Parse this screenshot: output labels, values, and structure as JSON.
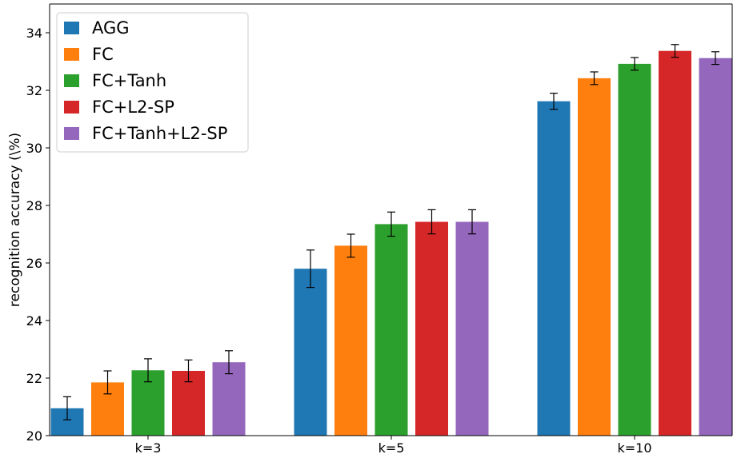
{
  "chart_data": {
    "type": "bar",
    "title": "",
    "xlabel": "",
    "ylabel": "recognition accuracy (\\%)",
    "categories": [
      "k=3",
      "k=5",
      "k=10"
    ],
    "ylim": [
      20,
      35
    ],
    "yticks": [
      20,
      22,
      24,
      26,
      28,
      30,
      32,
      34
    ],
    "grid": false,
    "legend_position": "top-left",
    "series": [
      {
        "name": "AGG",
        "color": "#1f77b4",
        "values": [
          20.95,
          25.8,
          31.62
        ],
        "errors": [
          0.4,
          0.65,
          0.28
        ]
      },
      {
        "name": "FC",
        "color": "#ff7f0e",
        "values": [
          21.85,
          26.6,
          32.42
        ],
        "errors": [
          0.4,
          0.4,
          0.22
        ]
      },
      {
        "name": "FC+Tanh",
        "color": "#2ca02c",
        "values": [
          22.27,
          27.35,
          32.92
        ],
        "errors": [
          0.4,
          0.42,
          0.22
        ]
      },
      {
        "name": "FC+L2-SP",
        "color": "#d62728",
        "values": [
          22.25,
          27.43,
          33.37
        ],
        "errors": [
          0.38,
          0.42,
          0.22
        ]
      },
      {
        "name": "FC+Tanh+L2-SP",
        "color": "#9467bd",
        "values": [
          22.55,
          27.43,
          33.12
        ],
        "errors": [
          0.4,
          0.42,
          0.22
        ]
      }
    ]
  }
}
